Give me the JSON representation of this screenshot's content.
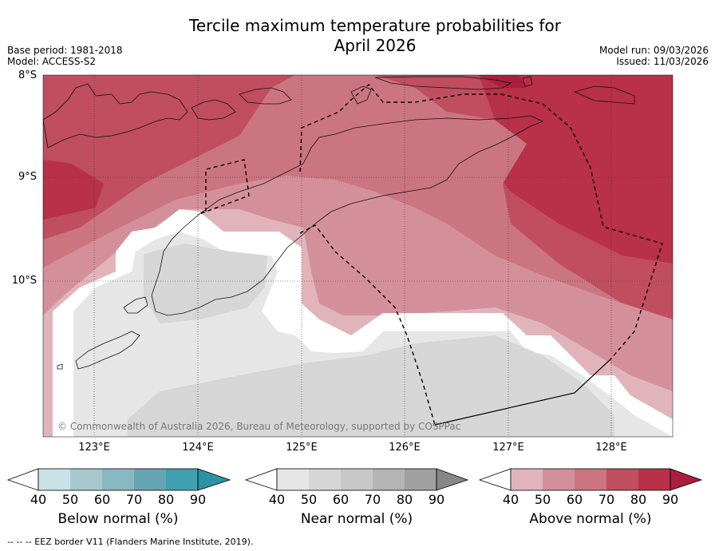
{
  "title": "Tercile maximum temperature probabilities for April 2026",
  "title_lines": [
    "Tercile maximum temperature probabilities for",
    "April 2026"
  ],
  "meta": {
    "base_period": "Base period: 1981-2018",
    "model": "Model: ACCESS-S2",
    "model_run": "Model run: 09/03/2026",
    "issued": "Issued: 11/03/2026"
  },
  "map": {
    "lat_labels": [
      "8°S",
      "9°S",
      "10°S"
    ],
    "lon_labels": [
      "123°E",
      "124°E",
      "125°E",
      "126°E",
      "127°E",
      "128°E"
    ],
    "copyright": "© Commonwealth of Australia 2026, Bureau of Meteorology, supported by COSPPac"
  },
  "colorbars": [
    {
      "title": "Below normal (%)",
      "ticks": [
        "40",
        "50",
        "60",
        "70",
        "80",
        "90"
      ],
      "colors": [
        "#ffffff",
        "#c8e2e8",
        "#a7c9ce",
        "#88b8c2",
        "#66a6b3",
        "#40a1b1",
        "#2b93a6"
      ]
    },
    {
      "title": "Near normal (%)",
      "ticks": [
        "40",
        "50",
        "60",
        "70",
        "80",
        "90"
      ],
      "colors": [
        "#ffffff",
        "#e6e6e6",
        "#d6d6d6",
        "#c8c8c8",
        "#b5b5b5",
        "#a0a0a0",
        "#878787"
      ]
    },
    {
      "title": "Above normal (%)",
      "ticks": [
        "40",
        "50",
        "60",
        "70",
        "80",
        "90"
      ],
      "colors": [
        "#ffffff",
        "#e1b4bb",
        "#d4909a",
        "#cb7580",
        "#c04e5f",
        "#b83148",
        "#ab1f3e"
      ]
    }
  ],
  "footer": "-- -- -- EEZ border V11 (Flanders Marine Institute, 2019)."
}
